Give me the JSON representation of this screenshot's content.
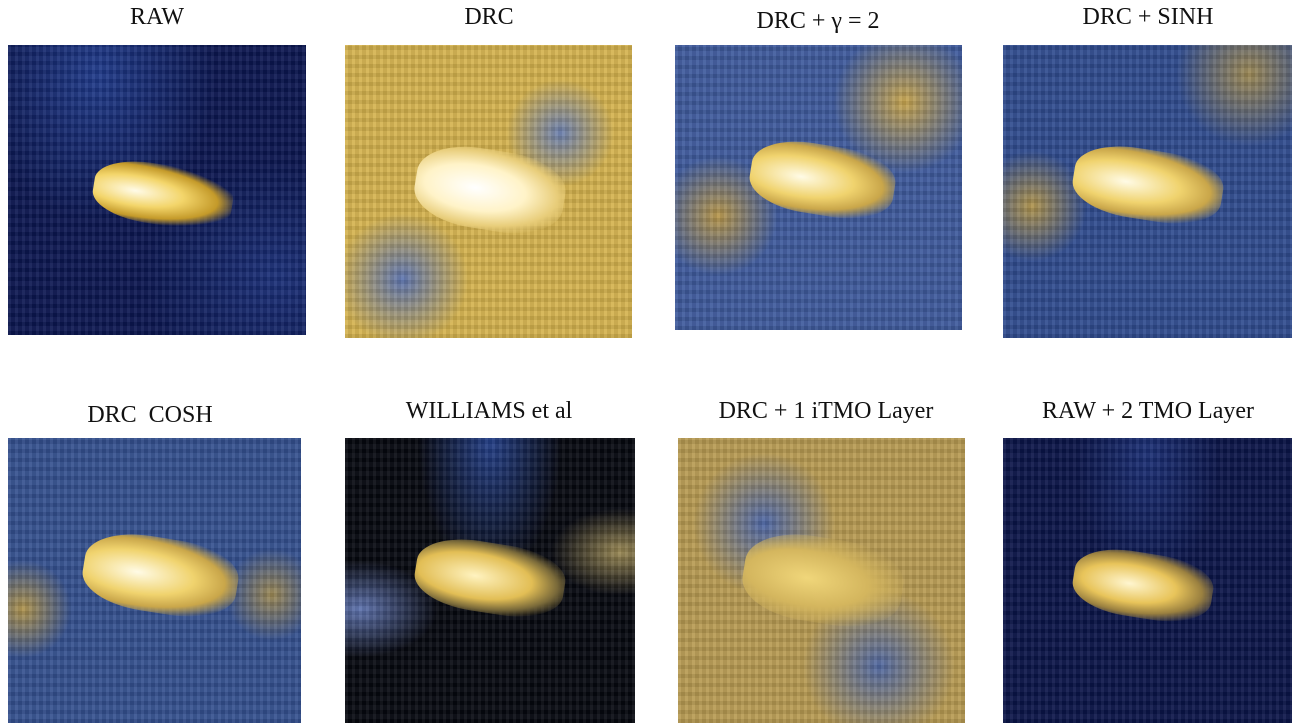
{
  "panels": [
    {
      "title": "RAW"
    },
    {
      "title": "DRC"
    },
    {
      "title": "DRC + γ = 2"
    },
    {
      "title": "DRC + SINH"
    },
    {
      "title": "DRC  COSH"
    },
    {
      "title": "WILLIAMS et al"
    },
    {
      "title": "DRC + 1 iTMO Layer"
    },
    {
      "title": "RAW + 2 TMO Layer"
    }
  ]
}
